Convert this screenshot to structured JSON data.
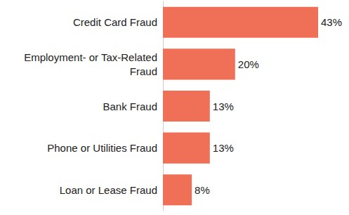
{
  "chart_data": {
    "type": "bar",
    "orientation": "horizontal",
    "categories": [
      "Credit Card Fraud",
      "Employment- or Tax-Related\nFraud",
      "Bank Fraud",
      "Phone or Utilities Fraud",
      "Loan or Lease Fraud"
    ],
    "values": [
      43,
      20,
      13,
      13,
      8
    ],
    "value_labels": [
      "43%",
      "20%",
      "13%",
      "13%",
      "8%"
    ],
    "color": "#f07057",
    "xlim": [
      0,
      43
    ],
    "data_labels": true,
    "tick_labels": "y",
    "grid": false
  }
}
